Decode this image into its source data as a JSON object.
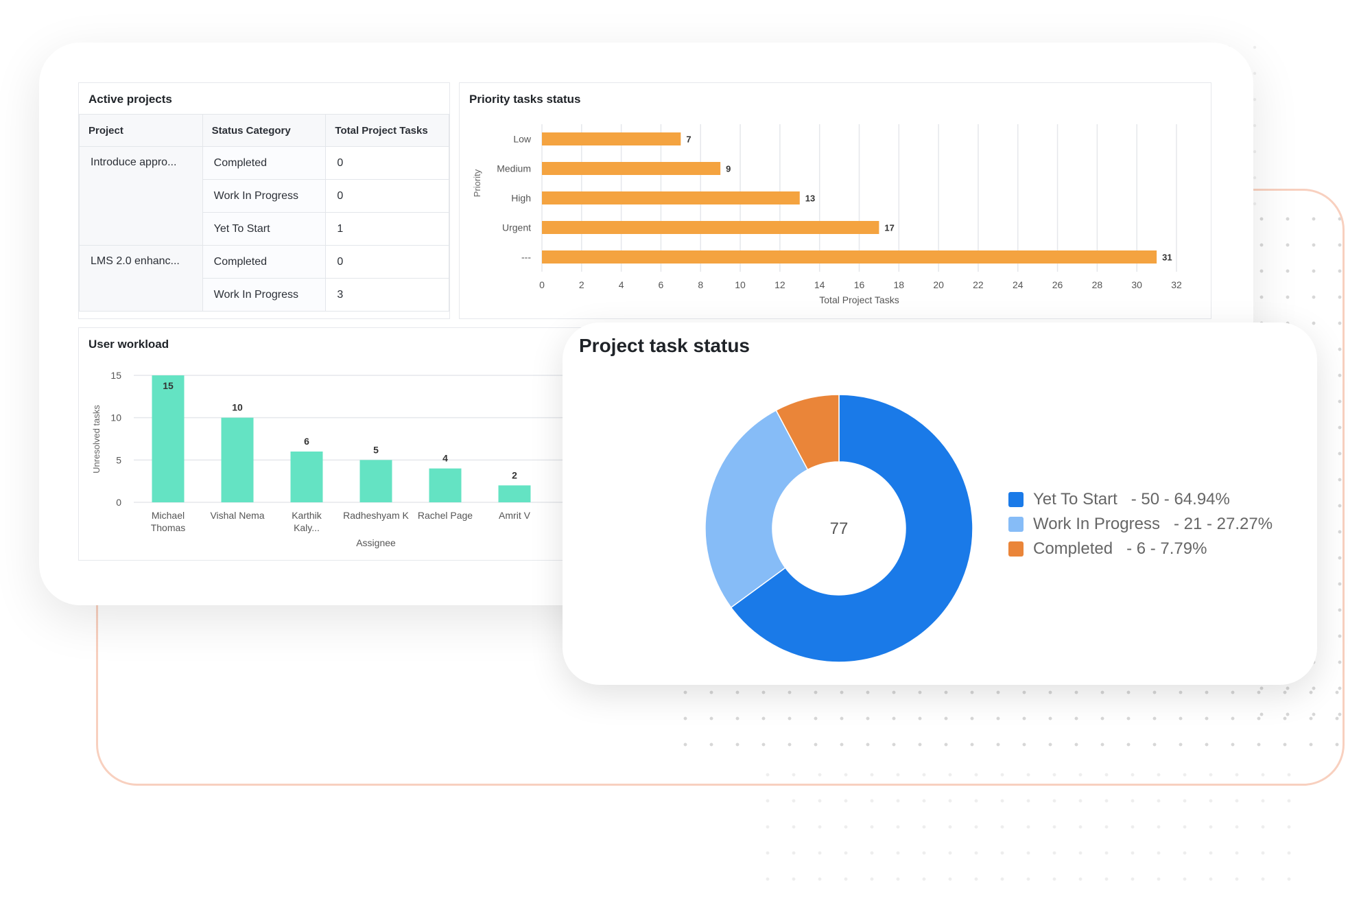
{
  "active_projects": {
    "title": "Active projects",
    "headers": [
      "Project",
      "Status Category",
      "Total Project Tasks"
    ],
    "rows": [
      {
        "project": "Introduce appro...",
        "status": "Completed",
        "tasks": "0"
      },
      {
        "project": "",
        "status": "Work In Progress",
        "tasks": "0"
      },
      {
        "project": "",
        "status": "Yet To Start",
        "tasks": "1"
      },
      {
        "project": "LMS 2.0 enhanc...",
        "status": "Completed",
        "tasks": "0"
      },
      {
        "project": "",
        "status": "Work In Progress",
        "tasks": "3"
      }
    ]
  },
  "chart_data": [
    {
      "type": "bar",
      "orientation": "horizontal",
      "title": "Priority tasks status",
      "categories": [
        "Low",
        "Medium",
        "High",
        "Urgent",
        "---"
      ],
      "values": [
        7,
        9,
        13,
        17,
        31
      ],
      "xlabel": "Total Project Tasks",
      "ylabel": "Priority",
      "xlim": [
        0,
        32
      ],
      "xticks": [
        0,
        2,
        4,
        6,
        8,
        10,
        12,
        14,
        16,
        18,
        20,
        22,
        24,
        26,
        28,
        30,
        32
      ],
      "grid": true,
      "color": "#f4a340"
    },
    {
      "type": "bar",
      "title": "User workload",
      "categories": [
        "Michael Thomas",
        "Vishal Nema",
        "Karthik Kaly...",
        "Radheshyam K",
        "Rachel Page",
        "Amrit V"
      ],
      "values": [
        15,
        10,
        6,
        5,
        4,
        2
      ],
      "xlabel": "Assignee",
      "ylabel": "Unresolved tasks",
      "ylim": [
        0,
        15
      ],
      "yticks": [
        0,
        5,
        10,
        15
      ],
      "grid": true,
      "color": "#64e3c3"
    },
    {
      "type": "pie",
      "donut": true,
      "title": "Project task status",
      "center_label": "77",
      "slices": [
        {
          "name": "Yet To Start",
          "value": 50,
          "percent": "64.94%",
          "color": "#1a7ae8"
        },
        {
          "name": "Work In Progress",
          "value": 21,
          "percent": "27.27%",
          "color": "#86bcf7"
        },
        {
          "name": "Completed",
          "value": 6,
          "percent": "7.79%",
          "color": "#ea8539"
        }
      ],
      "legend_position": "right"
    }
  ]
}
